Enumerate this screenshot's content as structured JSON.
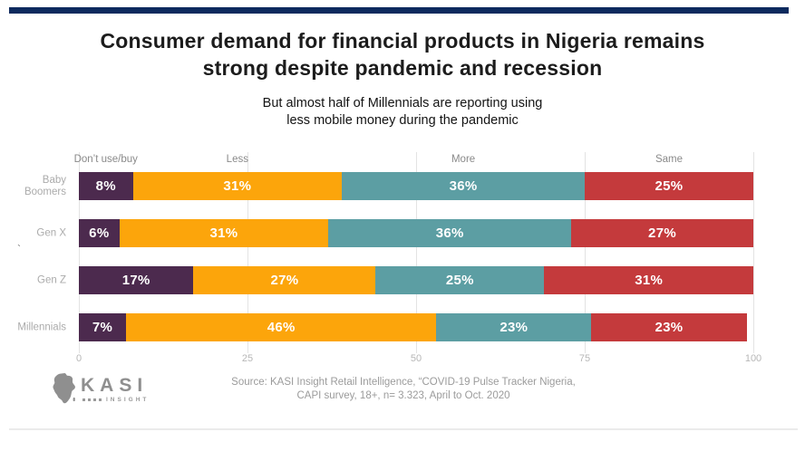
{
  "header": {
    "title_line1": "Consumer demand for financial products in Nigeria remains",
    "title_line2": "strong despite pandemic and recession",
    "subtitle_line1": "But almost half of Millennials are reporting using",
    "subtitle_line2": "less mobile money during the pandemic"
  },
  "chart_data": {
    "type": "bar",
    "stacked": true,
    "orientation": "horizontal",
    "title": "Consumer demand for financial products in Nigeria remains strong despite pandemic and recession",
    "subtitle": "But almost half of Millennials are reporting using less mobile money during the pandemic",
    "categories": [
      "Baby Boomers",
      "Gen X",
      "Gen Z",
      "Millennials"
    ],
    "series": [
      {
        "name": "Don’t use/buy",
        "color": "#4c2a4e",
        "values": [
          8,
          6,
          17,
          7
        ]
      },
      {
        "name": "Less",
        "color": "#fca50b",
        "values": [
          31,
          31,
          27,
          46
        ]
      },
      {
        "name": "More",
        "color": "#5c9ea3",
        "values": [
          36,
          36,
          25,
          23
        ]
      },
      {
        "name": "Same",
        "color": "#c43a3c",
        "values": [
          25,
          27,
          31,
          23
        ]
      }
    ],
    "x_ticks": [
      0,
      25,
      50,
      75,
      100
    ],
    "xlim": [
      0,
      100
    ],
    "value_suffix": "%",
    "grid": true,
    "legend_position": "top"
  },
  "stray_mark": "`",
  "footer": {
    "source_line1": "Source: KASI Insight Retail Intelligence, “COVID-19 Pulse Tracker Nigeria,",
    "source_line2": "CAPI survey, 18+, n= 3.323, April to Oct. 2020",
    "logo": {
      "brand": "KASI",
      "sub": "INSIGHT"
    }
  },
  "colors": {
    "accent_navy": "#0d2a5e",
    "gridline": "#e3e3e3",
    "bottom_line": "#ebebeb"
  }
}
